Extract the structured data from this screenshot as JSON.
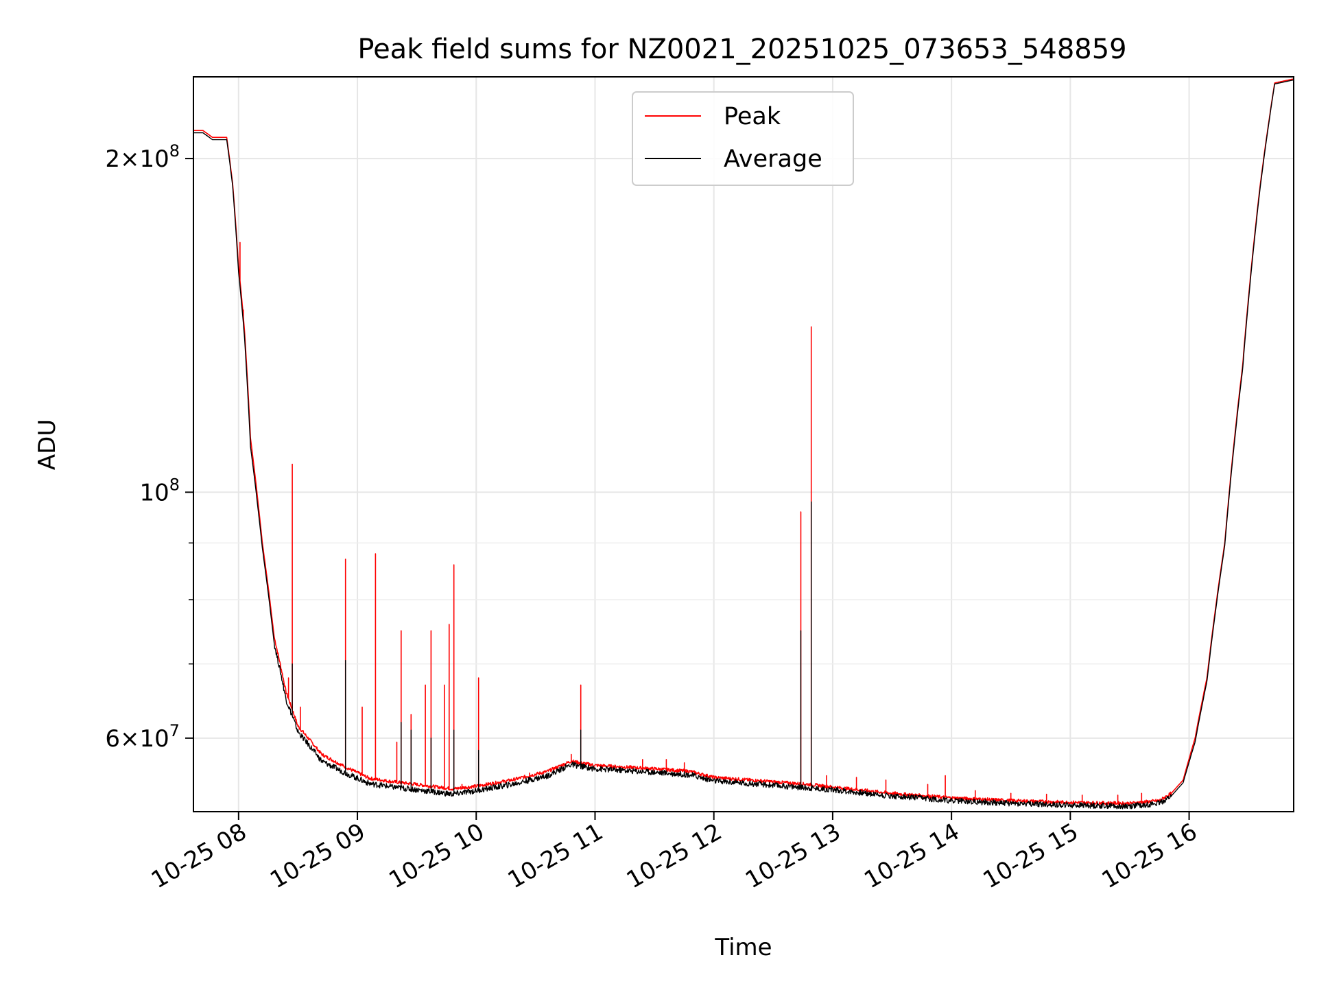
{
  "chart_data": {
    "type": "line",
    "title": "Peak field sums for NZ0021_20251025_073653_548859",
    "xlabel": "Time",
    "ylabel": "ADU",
    "x_unit": "hours since 2025-10-25 00:00",
    "xlim": [
      7.62,
      16.88
    ],
    "ylim": [
      51500000,
      237000000
    ],
    "yscale": "log",
    "grid": true,
    "legend_position": "upper center",
    "x_ticks": [
      {
        "value": 8,
        "label": "10-25 08"
      },
      {
        "value": 9,
        "label": "10-25 09"
      },
      {
        "value": 10,
        "label": "10-25 10"
      },
      {
        "value": 11,
        "label": "10-25 11"
      },
      {
        "value": 12,
        "label": "10-25 12"
      },
      {
        "value": 13,
        "label": "10-25 13"
      },
      {
        "value": 14,
        "label": "10-25 14"
      },
      {
        "value": 15,
        "label": "10-25 15"
      },
      {
        "value": 16,
        "label": "10-25 16"
      }
    ],
    "y_major_ticks": [
      {
        "value": 60000000,
        "mant": "6",
        "exp": "7"
      },
      {
        "value": 100000000,
        "mant": "",
        "exp": "8"
      },
      {
        "value": 200000000,
        "mant": "2",
        "exp": "8"
      }
    ],
    "y_minor_ticks": [
      70000000,
      80000000,
      90000000
    ],
    "series": [
      {
        "name": "Peak",
        "color": "#ff0000",
        "baseline": [
          [
            7.62,
            212000000
          ],
          [
            7.7,
            212000000
          ],
          [
            7.78,
            209000000
          ],
          [
            7.9,
            209000000
          ],
          [
            7.95,
            190000000
          ],
          [
            8.0,
            160000000
          ],
          [
            8.05,
            140000000
          ],
          [
            8.1,
            112000000
          ],
          [
            8.2,
            90000000
          ],
          [
            8.3,
            74000000
          ],
          [
            8.4,
            66000000
          ],
          [
            8.5,
            61500000
          ],
          [
            8.7,
            58000000
          ],
          [
            8.9,
            56500000
          ],
          [
            9.1,
            55200000
          ],
          [
            9.3,
            54800000
          ],
          [
            9.5,
            54500000
          ],
          [
            9.8,
            54000000
          ],
          [
            10.0,
            54300000
          ],
          [
            10.3,
            55000000
          ],
          [
            10.6,
            56000000
          ],
          [
            10.8,
            57200000
          ],
          [
            11.0,
            56700000
          ],
          [
            11.5,
            56300000
          ],
          [
            11.8,
            56000000
          ],
          [
            12.0,
            55300000
          ],
          [
            12.5,
            54800000
          ],
          [
            12.8,
            54500000
          ],
          [
            13.0,
            54200000
          ],
          [
            13.5,
            53500000
          ],
          [
            14.0,
            53000000
          ],
          [
            14.5,
            52700000
          ],
          [
            15.0,
            52500000
          ],
          [
            15.5,
            52400000
          ],
          [
            15.75,
            52700000
          ],
          [
            15.85,
            53500000
          ],
          [
            15.95,
            55000000
          ],
          [
            16.05,
            60000000
          ],
          [
            16.15,
            68000000
          ],
          [
            16.3,
            90000000
          ],
          [
            16.45,
            130000000
          ],
          [
            16.6,
            190000000
          ],
          [
            16.72,
            234000000
          ],
          [
            16.88,
            236000000
          ]
        ],
        "spikes": [
          [
            8.01,
            168000000
          ],
          [
            8.04,
            146000000
          ],
          [
            8.42,
            68000000
          ],
          [
            8.45,
            106000000
          ],
          [
            8.52,
            64000000
          ],
          [
            8.9,
            87000000
          ],
          [
            9.04,
            64000000
          ],
          [
            9.15,
            88000000
          ],
          [
            9.33,
            59500000
          ],
          [
            9.37,
            75000000
          ],
          [
            9.45,
            63000000
          ],
          [
            9.57,
            67000000
          ],
          [
            9.62,
            75000000
          ],
          [
            9.73,
            67000000
          ],
          [
            9.77,
            76000000
          ],
          [
            9.81,
            86000000
          ],
          [
            9.88,
            54500000
          ],
          [
            10.02,
            68000000
          ],
          [
            10.45,
            55800000
          ],
          [
            10.8,
            58000000
          ],
          [
            10.88,
            67000000
          ],
          [
            11.4,
            57400000
          ],
          [
            11.6,
            57400000
          ],
          [
            11.75,
            57000000
          ],
          [
            12.73,
            96000000
          ],
          [
            12.82,
            141000000
          ],
          [
            12.95,
            55500000
          ],
          [
            13.2,
            55300000
          ],
          [
            13.45,
            55000000
          ],
          [
            13.8,
            54500000
          ],
          [
            13.95,
            55500000
          ],
          [
            14.2,
            53800000
          ],
          [
            14.5,
            53500000
          ],
          [
            14.8,
            53400000
          ],
          [
            15.1,
            53300000
          ],
          [
            15.4,
            53300000
          ],
          [
            15.6,
            53500000
          ]
        ]
      },
      {
        "name": "Average",
        "color": "#000000",
        "baseline": [
          [
            7.62,
            211000000
          ],
          [
            7.7,
            211000000
          ],
          [
            7.78,
            208000000
          ],
          [
            7.9,
            208000000
          ],
          [
            7.95,
            189000000
          ],
          [
            8.0,
            158000000
          ],
          [
            8.05,
            138000000
          ],
          [
            8.1,
            110000000
          ],
          [
            8.2,
            89000000
          ],
          [
            8.3,
            73000000
          ],
          [
            8.4,
            65000000
          ],
          [
            8.5,
            60800000
          ],
          [
            8.7,
            57200000
          ],
          [
            8.9,
            55800000
          ],
          [
            9.1,
            54600000
          ],
          [
            9.3,
            54200000
          ],
          [
            9.5,
            53900000
          ],
          [
            9.8,
            53400000
          ],
          [
            10.0,
            53800000
          ],
          [
            10.3,
            54500000
          ],
          [
            10.6,
            55500000
          ],
          [
            10.8,
            56800000
          ],
          [
            11.0,
            56300000
          ],
          [
            11.5,
            55900000
          ],
          [
            11.8,
            55600000
          ],
          [
            12.0,
            54900000
          ],
          [
            12.5,
            54400000
          ],
          [
            12.8,
            54100000
          ],
          [
            13.0,
            53900000
          ],
          [
            13.5,
            53200000
          ],
          [
            14.0,
            52700000
          ],
          [
            14.5,
            52400000
          ],
          [
            15.0,
            52200000
          ],
          [
            15.5,
            52100000
          ],
          [
            15.75,
            52400000
          ],
          [
            15.85,
            53200000
          ],
          [
            15.95,
            54700000
          ],
          [
            16.05,
            59500000
          ],
          [
            16.15,
            67500000
          ],
          [
            16.3,
            89500000
          ],
          [
            16.45,
            129000000
          ],
          [
            16.6,
            189000000
          ],
          [
            16.72,
            233500000
          ],
          [
            16.88,
            235500000
          ]
        ],
        "spikes": [
          [
            8.45,
            70000000
          ],
          [
            8.9,
            70500000
          ],
          [
            9.37,
            62000000
          ],
          [
            9.45,
            61000000
          ],
          [
            9.62,
            60000000
          ],
          [
            9.81,
            61000000
          ],
          [
            10.02,
            58500000
          ],
          [
            10.88,
            61000000
          ],
          [
            12.73,
            75000000
          ],
          [
            12.82,
            98000000
          ]
        ]
      }
    ]
  }
}
